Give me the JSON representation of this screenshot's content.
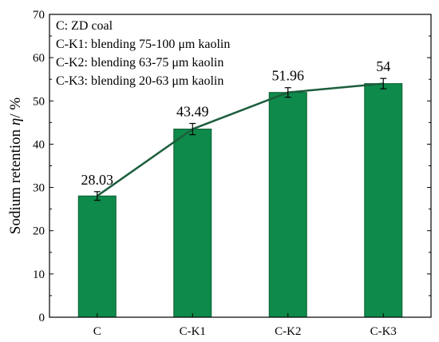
{
  "chart_data": {
    "type": "bar",
    "categories": [
      "C",
      "C-K1",
      "C-K2",
      "C-K3"
    ],
    "values": [
      28.03,
      43.49,
      51.96,
      54
    ],
    "value_labels": [
      "28.03",
      "43.49",
      "51.96",
      "54"
    ],
    "errors": [
      1.0,
      1.3,
      1.1,
      1.2
    ],
    "ylabel_text": "Sodium retention",
    "ylabel_symbol": "η",
    "ylabel_unit": "/ %",
    "xlabel": "",
    "title": "",
    "ylim": [
      0,
      70
    ],
    "yticks": [
      "0",
      "10",
      "20",
      "30",
      "40",
      "50",
      "60",
      "70"
    ],
    "grid": false,
    "overlay": "line connecting bar tops",
    "annotations": [
      "C: ZD coal",
      "C-K1: blending 75-100 μm kaolin",
      "C-K2: blending 63-75 μm kaolin",
      "C-K3: blending 20-63 μm kaolin"
    ],
    "colors": {
      "bar": "#0e8a4a",
      "bar_edge": "#0a5e32",
      "line": "#1c5e3c",
      "axis": "#000000"
    }
  }
}
